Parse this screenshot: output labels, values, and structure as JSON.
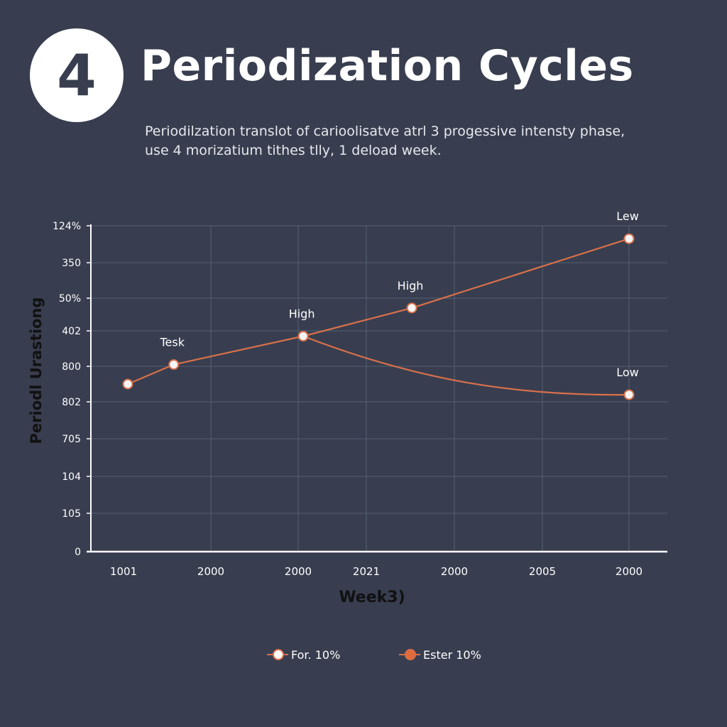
{
  "header": {
    "badge_number": "4",
    "title": "Periodization Cycles",
    "subtitle": "Periodilzation translot of carioolisatve atrl 3 progessive intensty phase, use 4 morizatium tithes tlly, 1 deload week."
  },
  "chart_data": {
    "type": "line",
    "title": "Periodization Cycles",
    "xlabel": "Week3)",
    "ylabel": "Periodl Urastiong",
    "x_tick_labels": [
      "1001",
      "2000",
      "2000",
      "2021",
      "2000",
      "2005",
      "2000"
    ],
    "y_tick_labels": [
      "0",
      "105",
      "104",
      "705",
      "802",
      "800",
      "402",
      "50%",
      "350",
      "124%"
    ],
    "x_range": [
      0,
      6
    ],
    "y_range": [
      0,
      9
    ],
    "grid": true,
    "legend_position": "bottom",
    "series": [
      {
        "name": "For. 10%",
        "color": "#d9704a",
        "marker_fill": "#f5f5f5",
        "curve": "linear",
        "points": [
          {
            "x": 0.0,
            "y": 4.5,
            "label": ""
          },
          {
            "x": 0.55,
            "y": 5.05,
            "label": "Tesk"
          },
          {
            "x": 2.1,
            "y": 5.85,
            "label": "High"
          },
          {
            "x": 3.4,
            "y": 6.7,
            "label": "High"
          },
          {
            "x": 6.0,
            "y": 8.65,
            "label": "Lew"
          }
        ]
      },
      {
        "name": "Ester 10%",
        "color": "#d9704a",
        "marker_fill": "#f5f5f5",
        "curve": "smooth",
        "points": [
          {
            "x": 2.1,
            "y": 5.85,
            "label": ""
          },
          {
            "x": 6.0,
            "y": 4.2,
            "label": "Low"
          }
        ]
      }
    ]
  },
  "legend": {
    "items": [
      {
        "label": "For. 10%",
        "dot_fill": "#ffffff"
      },
      {
        "label": "Ester 10%",
        "dot_fill": "#e06a3c"
      }
    ]
  }
}
